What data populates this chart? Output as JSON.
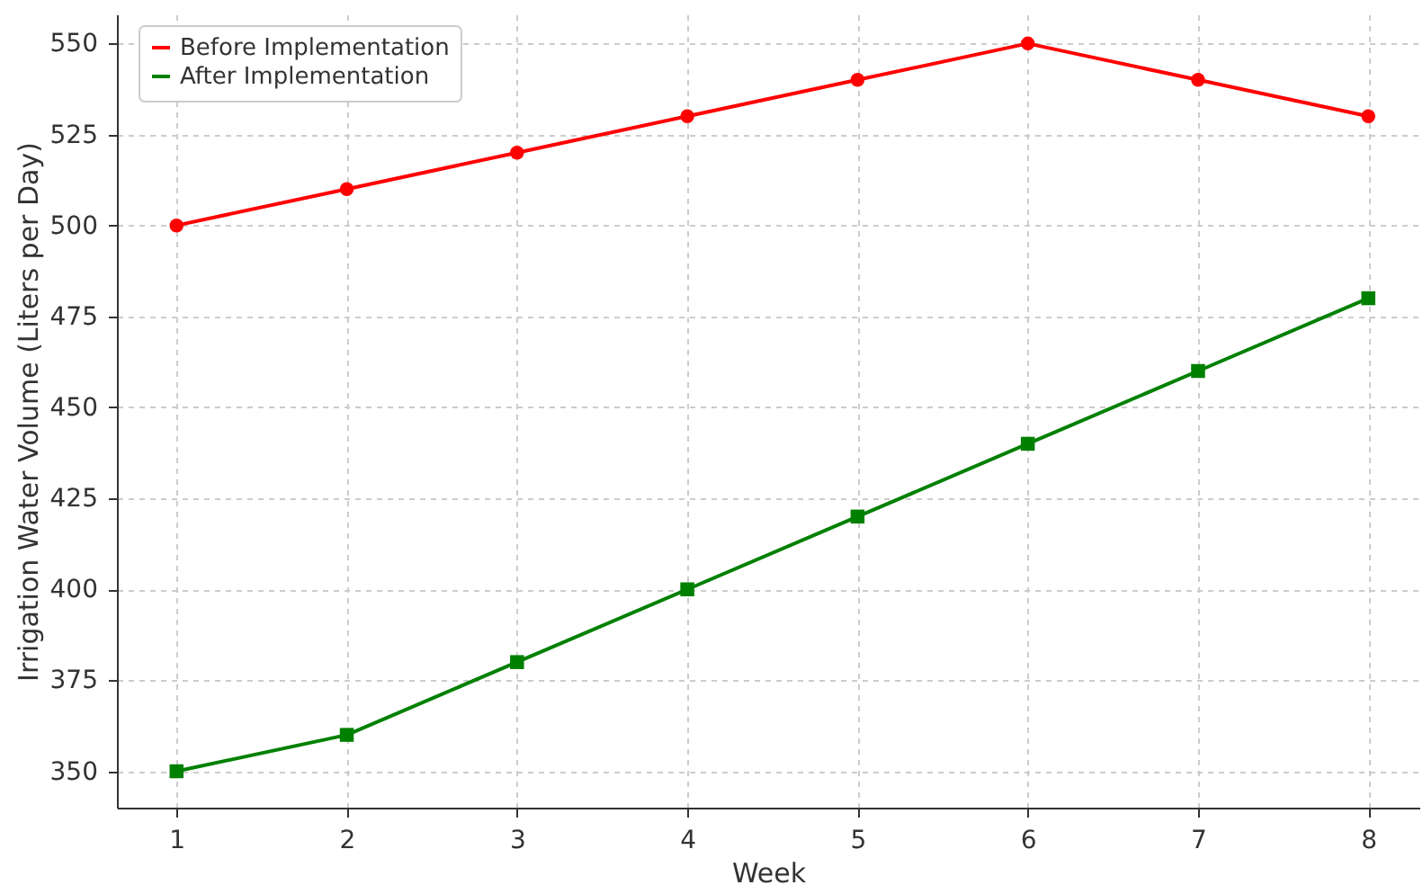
{
  "chart_data": {
    "type": "line",
    "xlabel": "Week",
    "ylabel": "Irrigation Water Volume (Liters per Day)",
    "x": [
      1,
      2,
      3,
      4,
      5,
      6,
      7,
      8
    ],
    "series": [
      {
        "name": "Before Implementation",
        "color": "#ff0000",
        "marker": "circle",
        "values": [
          500,
          510,
          520,
          530,
          540,
          550,
          540,
          530
        ]
      },
      {
        "name": "After Implementation",
        "color": "#008000",
        "marker": "square",
        "values": [
          350,
          360,
          380,
          400,
          420,
          440,
          460,
          480
        ]
      }
    ],
    "xlim": [
      0.65,
      8.3
    ],
    "xticks": [
      1,
      2,
      3,
      4,
      5,
      6,
      7,
      8
    ],
    "ylim": [
      340,
      558
    ],
    "yticks": [
      350,
      375,
      400,
      425,
      450,
      475,
      500,
      525,
      550
    ],
    "grid": true,
    "legend": "top left",
    "line_style": "solid"
  }
}
